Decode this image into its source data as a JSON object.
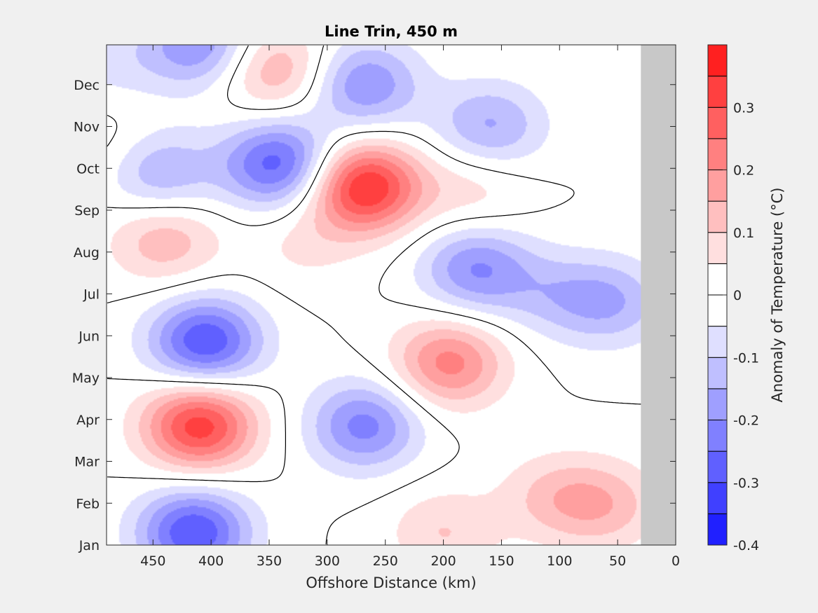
{
  "chart_data": {
    "type": "heatmap",
    "title": "Line Trin, 450 m",
    "xlabel": "Offshore Distance (km)",
    "ylabel": "",
    "colorbar_label": "Anomaly of Temperature (°C)",
    "x_axis": {
      "lim": [
        490,
        0
      ],
      "direction": "reversed",
      "ticks": [
        450,
        400,
        350,
        300,
        250,
        200,
        150,
        100,
        50,
        0
      ],
      "tick_labels": [
        "450",
        "400",
        "350",
        "300",
        "250",
        "200",
        "150",
        "100",
        "50",
        "0"
      ]
    },
    "y_axis": {
      "months": [
        "Jan",
        "Feb",
        "Mar",
        "Apr",
        "May",
        "Jun",
        "Jul",
        "Aug",
        "Sep",
        "Oct",
        "Nov",
        "Dec"
      ],
      "lim": [
        1,
        12.95
      ]
    },
    "color_scale": {
      "range": [
        -0.4,
        0.4
      ],
      "step": 0.05,
      "ticks": [
        0.3,
        0.2,
        0.1,
        0,
        -0.1,
        -0.2,
        -0.3,
        -0.4
      ],
      "tick_labels": [
        "0.3",
        "0.2",
        "0.1",
        "0",
        "-0.1",
        "-0.2",
        "-0.3",
        "-0.4"
      ],
      "negative_color": "#0000ff",
      "positive_color": "#ff0000",
      "neutral_color": "#ffffff",
      "no_data_color": "#c8c8c8"
    },
    "no_data_region_km": [
      30,
      0
    ],
    "zero_contour": true,
    "anomaly_centers": [
      {
        "x": 268,
        "month": 9.55,
        "value": 0.36
      },
      {
        "x": 410,
        "month": 3.85,
        "value": 0.33
      },
      {
        "x": 195,
        "month": 5.35,
        "value": 0.22
      },
      {
        "x": 345,
        "month": 12.35,
        "value": 0.16
      },
      {
        "x": 440,
        "month": 8.3,
        "value": 0.14
      },
      {
        "x": 60,
        "month": 1.95,
        "value": 0.12
      },
      {
        "x": 105,
        "month": 2.15,
        "value": 0.1
      },
      {
        "x": 200,
        "month": 1.3,
        "value": 0.1
      },
      {
        "x": 175,
        "month": 9.5,
        "value": 0.08
      },
      {
        "x": 320,
        "month": 8.2,
        "value": 0.06
      },
      {
        "x": 485,
        "month": 10.5,
        "value": 0.05
      },
      {
        "x": 405,
        "month": 5.85,
        "value": -0.3
      },
      {
        "x": 415,
        "month": 1.3,
        "value": -0.3
      },
      {
        "x": 342,
        "month": 10.1,
        "value": -0.28
      },
      {
        "x": 268,
        "month": 3.85,
        "value": -0.22
      },
      {
        "x": 268,
        "month": 12.0,
        "value": -0.2
      },
      {
        "x": 410,
        "month": 12.95,
        "value": -0.2
      },
      {
        "x": 172,
        "month": 7.6,
        "value": -0.2
      },
      {
        "x": 160,
        "month": 11.0,
        "value": -0.16
      },
      {
        "x": 445,
        "month": 9.9,
        "value": -0.16
      },
      {
        "x": 55,
        "month": 6.8,
        "value": -0.14
      },
      {
        "x": 105,
        "month": 7.0,
        "value": -0.09
      },
      {
        "x": 485,
        "month": 12.5,
        "value": -0.06
      }
    ]
  }
}
